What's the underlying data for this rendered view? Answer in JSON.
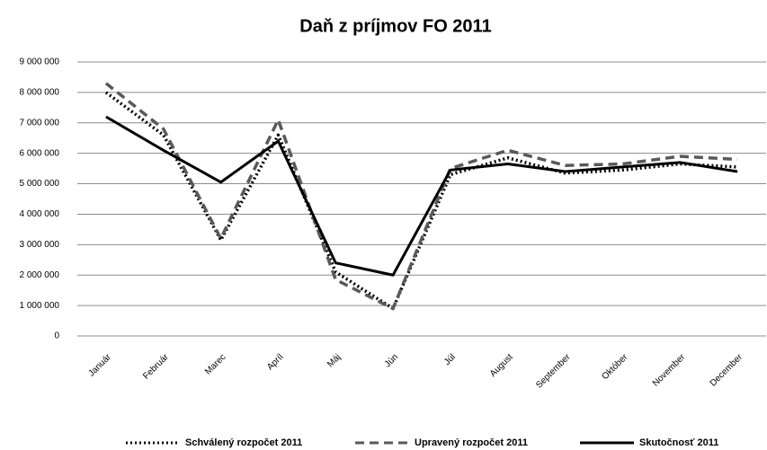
{
  "chart_data": {
    "type": "line",
    "title": "Daň z príjmov FO 2011",
    "categories": [
      "Január",
      "Február",
      "Marec",
      "Apríl",
      "Máj",
      "Jún",
      "Júl",
      "August",
      "September",
      "Október",
      "November",
      "December"
    ],
    "series": [
      {
        "name": "Schválený rozpočet 2011",
        "color": "#000000",
        "line_style": "dotted",
        "values": [
          8000000,
          6600000,
          3150000,
          6600000,
          2100000,
          900000,
          5300000,
          5850000,
          5350000,
          5450000,
          5650000,
          5550000
        ]
      },
      {
        "name": "Upravený rozpočet 2011",
        "color": "#595959",
        "line_style": "dashed",
        "values": [
          8300000,
          6800000,
          3200000,
          7100000,
          1850000,
          900000,
          5500000,
          6100000,
          5600000,
          5650000,
          5900000,
          5800000
        ]
      },
      {
        "name": "Skutočnosť 2011",
        "color": "#000000",
        "line_style": "solid",
        "values": [
          7200000,
          6100000,
          5050000,
          6400000,
          2400000,
          2000000,
          5450000,
          5650000,
          5400000,
          5550000,
          5700000,
          5400000
        ]
      }
    ],
    "ylim": [
      0,
      9000000
    ],
    "yticks": [
      0,
      {
        "value": 1000000,
        "label": "1 000 000"
      },
      {
        "value": 2000000,
        "label": "2 000 000"
      },
      {
        "value": 3000000,
        "label": "3 000 000"
      },
      {
        "value": 4000000,
        "label": "4 000 000"
      },
      {
        "value": 5000000,
        "label": "5 000 000"
      },
      {
        "value": 6000000,
        "label": "6 000 000"
      },
      {
        "value": 7000000,
        "label": "7 000 000"
      },
      {
        "value": 8000000,
        "label": "8 000 000"
      },
      {
        "value": 9000000,
        "label": "9 000 000"
      }
    ],
    "grid": true,
    "legend": "bottom"
  }
}
